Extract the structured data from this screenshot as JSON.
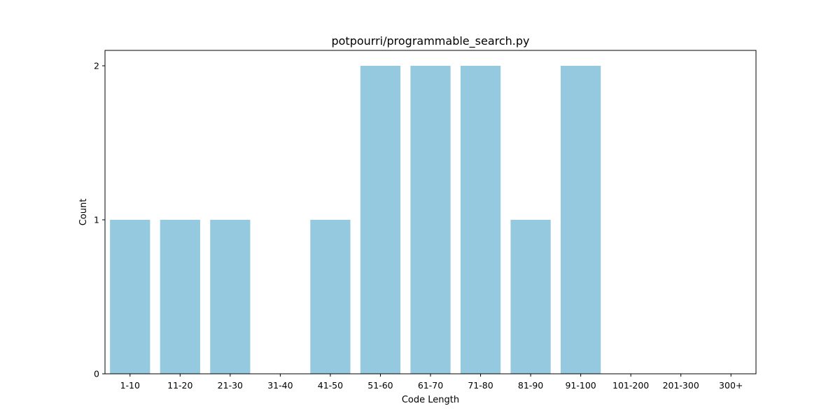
{
  "chart_data": {
    "type": "bar",
    "title": "potpourri/programmable_search.py",
    "xlabel": "Code Length",
    "ylabel": "Count",
    "categories": [
      "1-10",
      "11-20",
      "21-30",
      "31-40",
      "41-50",
      "51-60",
      "61-70",
      "71-80",
      "81-90",
      "91-100",
      "101-200",
      "201-300",
      "300+"
    ],
    "values": [
      1,
      1,
      1,
      0,
      1,
      2,
      2,
      2,
      1,
      2,
      0,
      0,
      0
    ],
    "yticks": [
      0,
      1,
      2
    ],
    "ylim": [
      0,
      2.1
    ],
    "grid": false,
    "bar_color": "#95c9df"
  }
}
